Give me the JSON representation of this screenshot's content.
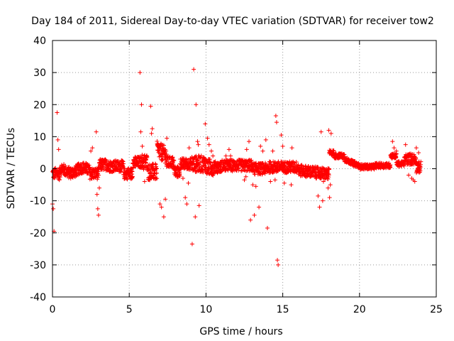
{
  "chart_data": {
    "type": "scatter",
    "title": "Day 184 of 2011, Sidereal Day-to-day VTEC variation (SDTVAR) for receiver tow2",
    "xlabel": "GPS time / hours",
    "ylabel": "SDTVAR / TECUs",
    "xlim": [
      0,
      25
    ],
    "ylim": [
      -40,
      40
    ],
    "xticks": [
      "0",
      "5",
      "10",
      "15",
      "20",
      "25"
    ],
    "yticks": [
      "-40",
      "-30",
      "-20",
      "-10",
      "0",
      "10",
      "20",
      "30",
      "40"
    ],
    "grid": true,
    "marker": "plus",
    "color": "#ff0000",
    "series": [
      {
        "name": "SDTVAR",
        "outliers": [
          [
            0.0,
            -11.0
          ],
          [
            0.05,
            -12.5
          ],
          [
            0.1,
            -19.5
          ],
          [
            0.3,
            17.5
          ],
          [
            0.35,
            9.0
          ],
          [
            0.4,
            6.0
          ],
          [
            0.45,
            -3.5
          ],
          [
            2.5,
            5.5
          ],
          [
            2.6,
            6.5
          ],
          [
            2.85,
            11.5
          ],
          [
            2.9,
            -8.0
          ],
          [
            2.95,
            -12.5
          ],
          [
            3.0,
            -14.5
          ],
          [
            3.05,
            -6.0
          ],
          [
            5.7,
            30.0
          ],
          [
            5.75,
            11.5
          ],
          [
            5.8,
            20.0
          ],
          [
            5.85,
            7.0
          ],
          [
            6.0,
            -4.0
          ],
          [
            6.4,
            19.5
          ],
          [
            6.5,
            12.5
          ],
          [
            6.45,
            11.0
          ],
          [
            7.0,
            -11.0
          ],
          [
            7.1,
            -12.0
          ],
          [
            7.25,
            -15.0
          ],
          [
            7.35,
            -9.5
          ],
          [
            7.45,
            9.5
          ],
          [
            8.5,
            -3.0
          ],
          [
            8.65,
            -9.0
          ],
          [
            8.75,
            -11.0
          ],
          [
            8.85,
            -4.5
          ],
          [
            8.9,
            6.5
          ],
          [
            9.1,
            -23.5
          ],
          [
            9.2,
            31.0
          ],
          [
            9.3,
            -15.0
          ],
          [
            9.35,
            20.0
          ],
          [
            9.45,
            8.5
          ],
          [
            9.5,
            7.5
          ],
          [
            9.55,
            -11.5
          ],
          [
            9.95,
            14.0
          ],
          [
            10.1,
            9.5
          ],
          [
            10.2,
            7.5
          ],
          [
            10.35,
            5.5
          ],
          [
            10.45,
            4.0
          ],
          [
            11.3,
            4.0
          ],
          [
            11.5,
            6.0
          ],
          [
            11.6,
            4.0
          ],
          [
            12.5,
            -3.5
          ],
          [
            12.6,
            -2.5
          ],
          [
            12.65,
            6.0
          ],
          [
            12.8,
            8.5
          ],
          [
            12.9,
            -16.0
          ],
          [
            13.05,
            -5.0
          ],
          [
            13.15,
            -14.5
          ],
          [
            13.25,
            -5.5
          ],
          [
            13.45,
            -12.0
          ],
          [
            13.55,
            7.0
          ],
          [
            13.7,
            5.5
          ],
          [
            13.9,
            9.0
          ],
          [
            14.0,
            -18.5
          ],
          [
            14.2,
            -4.0
          ],
          [
            14.35,
            5.5
          ],
          [
            14.5,
            -3.5
          ],
          [
            14.55,
            16.5
          ],
          [
            14.6,
            14.5
          ],
          [
            14.65,
            -28.5
          ],
          [
            14.7,
            -30.0
          ],
          [
            14.9,
            10.5
          ],
          [
            15.0,
            7.0
          ],
          [
            15.1,
            -4.5
          ],
          [
            15.55,
            -5.0
          ],
          [
            15.6,
            6.5
          ],
          [
            17.3,
            -8.5
          ],
          [
            17.4,
            -12.0
          ],
          [
            17.5,
            11.5
          ],
          [
            17.6,
            -10.0
          ],
          [
            17.65,
            -4.0
          ],
          [
            17.95,
            -6.0
          ],
          [
            18.0,
            12.0
          ],
          [
            18.05,
            -9.0
          ],
          [
            18.1,
            -5.0
          ],
          [
            18.15,
            11.0
          ],
          [
            22.15,
            8.5
          ],
          [
            22.25,
            6.5
          ],
          [
            22.4,
            5.5
          ],
          [
            23.0,
            7.5
          ],
          [
            23.2,
            -2.0
          ],
          [
            23.4,
            -3.0
          ],
          [
            23.5,
            -3.5
          ],
          [
            23.6,
            -4.0
          ],
          [
            23.7,
            6.5
          ],
          [
            23.85,
            5.0
          ]
        ]
      }
    ]
  }
}
